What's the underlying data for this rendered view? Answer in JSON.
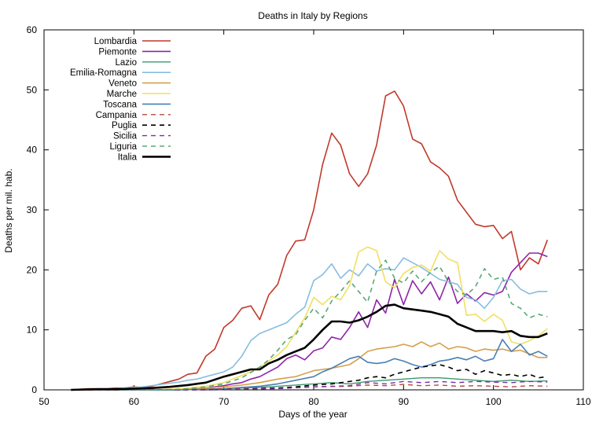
{
  "chart_data": {
    "type": "line",
    "title": "Deaths in Italy by Regions",
    "xlabel": "Days of the year",
    "ylabel": "Deaths per mil. hab.",
    "xlim": [
      50,
      110
    ],
    "ylim": [
      0,
      60
    ],
    "xticks": [
      50,
      60,
      70,
      80,
      90,
      100,
      110
    ],
    "yticks": [
      0,
      10,
      20,
      30,
      40,
      50,
      60
    ],
    "grid": false,
    "legend_position": "top-left",
    "series": [
      {
        "name": "Lombardia",
        "color": "#c0392b",
        "dash": "solid",
        "width": 1.6,
        "x": [
          53,
          54,
          55,
          56,
          57,
          58,
          59,
          60,
          61,
          62,
          63,
          64,
          65,
          66,
          67,
          68,
          69,
          70,
          71,
          72,
          73,
          74,
          75,
          76,
          77,
          78,
          79,
          80,
          81,
          82,
          83,
          84,
          85,
          86,
          87,
          88,
          89,
          90,
          91,
          92,
          93,
          94,
          95,
          96,
          97,
          98,
          99,
          100,
          101,
          102,
          103,
          104,
          105,
          106
        ],
        "y": [
          0,
          0.1,
          0.2,
          0.2,
          0.2,
          0.3,
          0.3,
          0.5,
          0.4,
          0.6,
          1.0,
          1.4,
          1.8,
          2.6,
          2.8,
          5.6,
          6.8,
          10.4,
          11.6,
          13.6,
          14.0,
          11.7,
          15.8,
          17.6,
          22.4,
          24.8,
          25.0,
          30.0,
          37.6,
          42.8,
          40.8,
          36.0,
          33.9,
          36.0,
          40.8,
          49.0,
          49.8,
          47.3,
          41.8,
          41.0,
          38.0,
          37.0,
          35.6,
          31.6,
          29.6,
          27.6,
          27.2,
          27.4,
          25.2,
          26.4,
          20.0,
          22.0,
          21.0,
          25.0
        ]
      },
      {
        "name": "Piemonte",
        "color": "#8e24aa",
        "dash": "solid",
        "width": 1.6,
        "x": [
          53,
          54,
          55,
          56,
          57,
          58,
          59,
          60,
          61,
          62,
          63,
          64,
          65,
          66,
          67,
          68,
          69,
          70,
          71,
          72,
          73,
          74,
          75,
          76,
          77,
          78,
          79,
          80,
          81,
          82,
          83,
          84,
          85,
          86,
          87,
          88,
          89,
          90,
          91,
          92,
          93,
          94,
          95,
          96,
          97,
          98,
          99,
          100,
          101,
          102,
          103,
          104,
          105,
          106
        ],
        "y": [
          0,
          0,
          0,
          0,
          0,
          0,
          0,
          0,
          0,
          0,
          0,
          0,
          0,
          0.1,
          0.2,
          0.3,
          0.5,
          0.7,
          1.0,
          1.2,
          1.8,
          2.2,
          3.0,
          3.8,
          5.2,
          5.8,
          5.0,
          6.5,
          7.0,
          8.8,
          8.4,
          10.4,
          13.0,
          10.4,
          15.0,
          12.8,
          18.4,
          14.2,
          18.2,
          16.0,
          18.0,
          15.0,
          18.8,
          14.4,
          16.0,
          14.8,
          16.2,
          15.8,
          16.4,
          19.6,
          21.2,
          22.8,
          22.8,
          22.2
        ]
      },
      {
        "name": "Lazio",
        "color": "#3a9a6e",
        "dash": "solid",
        "width": 1.4,
        "x": [
          53,
          56,
          59,
          62,
          65,
          68,
          70,
          72,
          74,
          76,
          78,
          80,
          82,
          84,
          86,
          88,
          90,
          92,
          94,
          96,
          98,
          100,
          102,
          104,
          106
        ],
        "y": [
          0,
          0,
          0,
          0,
          0,
          0.1,
          0.2,
          0.3,
          0.4,
          0.6,
          0.8,
          1.0,
          1.2,
          1.0,
          1.4,
          1.6,
          1.8,
          2.0,
          2.0,
          1.8,
          1.6,
          1.4,
          1.6,
          1.4,
          1.5
        ]
      },
      {
        "name": "Emilia-Romagna",
        "color": "#87bde0",
        "dash": "solid",
        "width": 1.6,
        "x": [
          53,
          54,
          55,
          56,
          57,
          58,
          59,
          60,
          61,
          62,
          63,
          64,
          65,
          66,
          67,
          68,
          69,
          70,
          71,
          72,
          73,
          74,
          75,
          76,
          77,
          78,
          79,
          80,
          81,
          82,
          83,
          84,
          85,
          86,
          87,
          88,
          89,
          90,
          91,
          92,
          93,
          94,
          95,
          96,
          97,
          98,
          99,
          100,
          101,
          102,
          103,
          104,
          105,
          106
        ],
        "y": [
          0,
          0,
          0,
          0,
          0.1,
          0.2,
          0.3,
          0.4,
          0.5,
          0.7,
          0.9,
          1.1,
          1.3,
          1.6,
          1.8,
          2.2,
          2.6,
          3.0,
          3.8,
          5.6,
          8.2,
          9.4,
          10.0,
          10.6,
          11.2,
          12.6,
          13.8,
          18.2,
          19.2,
          21.0,
          18.6,
          20.0,
          19.0,
          21.0,
          19.8,
          20.2,
          20.0,
          22.0,
          21.2,
          20.4,
          19.4,
          18.4,
          18.0,
          17.6,
          15.4,
          15.0,
          13.6,
          15.4,
          18.2,
          18.4,
          16.8,
          16.0,
          16.4,
          16.4
        ]
      },
      {
        "name": "Veneto",
        "color": "#d4a04a",
        "dash": "solid",
        "width": 1.6,
        "x": [
          53,
          56,
          59,
          62,
          64,
          66,
          68,
          70,
          72,
          74,
          76,
          78,
          80,
          82,
          84,
          85,
          86,
          87,
          88,
          89,
          90,
          91,
          92,
          93,
          94,
          95,
          96,
          97,
          98,
          99,
          100,
          101,
          102,
          103,
          104,
          105,
          106
        ],
        "y": [
          0,
          0,
          0,
          0,
          0.1,
          0.2,
          0.3,
          0.5,
          0.8,
          1.2,
          1.8,
          2.2,
          3.2,
          3.6,
          4.2,
          5.2,
          6.4,
          6.8,
          7.0,
          7.2,
          7.6,
          7.2,
          8.0,
          7.2,
          7.8,
          6.8,
          7.2,
          7.0,
          6.4,
          6.8,
          6.6,
          6.8,
          6.4,
          6.6,
          6.0,
          5.4,
          5.4
        ]
      },
      {
        "name": "Marche",
        "color": "#f0e060",
        "dash": "solid",
        "width": 1.6,
        "x": [
          53,
          56,
          59,
          62,
          64,
          66,
          68,
          70,
          71,
          72,
          73,
          74,
          75,
          76,
          77,
          78,
          79,
          80,
          81,
          82,
          83,
          84,
          85,
          86,
          87,
          88,
          89,
          90,
          91,
          92,
          93,
          94,
          95,
          96,
          97,
          98,
          99,
          100,
          101,
          102,
          103,
          104,
          105,
          106
        ],
        "y": [
          0,
          0,
          0,
          0,
          0.1,
          0.3,
          0.6,
          1.2,
          1.8,
          2.4,
          3.0,
          3.8,
          4.8,
          5.8,
          7.2,
          9.6,
          12.0,
          15.4,
          14.2,
          15.6,
          15.0,
          17.4,
          23.0,
          23.8,
          23.2,
          18.0,
          17.0,
          19.4,
          20.4,
          20.8,
          19.8,
          23.2,
          21.8,
          21.2,
          12.4,
          12.6,
          11.4,
          12.6,
          11.6,
          8.0,
          7.6,
          8.2,
          9.0,
          10.2
        ]
      },
      {
        "name": "Toscana",
        "color": "#4a7fb5",
        "dash": "solid",
        "width": 1.6,
        "x": [
          53,
          56,
          59,
          62,
          65,
          68,
          70,
          72,
          74,
          76,
          78,
          80,
          81,
          82,
          83,
          84,
          85,
          86,
          87,
          88,
          89,
          90,
          91,
          92,
          93,
          94,
          95,
          96,
          97,
          98,
          99,
          100,
          101,
          102,
          103,
          104,
          105,
          106
        ],
        "y": [
          0,
          0,
          0,
          0,
          0,
          0.1,
          0.2,
          0.4,
          0.6,
          1.0,
          1.6,
          2.2,
          3.0,
          3.6,
          4.4,
          5.2,
          5.6,
          4.6,
          4.4,
          4.6,
          5.2,
          4.8,
          4.2,
          3.8,
          4.2,
          4.8,
          5.0,
          5.4,
          5.0,
          5.6,
          4.8,
          5.2,
          8.4,
          6.4,
          7.6,
          5.8,
          6.4,
          5.6
        ]
      },
      {
        "name": "Campania",
        "color": "#b5493a",
        "dash": "dashed",
        "width": 1.4,
        "x": [
          53,
          56,
          60,
          64,
          68,
          72,
          76,
          80,
          84,
          86,
          88,
          90,
          92,
          94,
          96,
          98,
          100,
          102,
          104,
          106
        ],
        "y": [
          0,
          0,
          0,
          0,
          0.1,
          0.2,
          0.3,
          0.5,
          0.6,
          0.8,
          0.7,
          0.9,
          0.7,
          0.8,
          0.6,
          0.7,
          0.6,
          0.5,
          0.7,
          0.6
        ]
      },
      {
        "name": "Puglia",
        "color": "#000000",
        "dash": "dashed",
        "width": 1.6,
        "x": [
          53,
          56,
          60,
          64,
          68,
          72,
          76,
          78,
          80,
          82,
          84,
          85,
          86,
          87,
          88,
          89,
          90,
          91,
          92,
          93,
          94,
          95,
          96,
          97,
          98,
          99,
          100,
          101,
          102,
          103,
          104,
          105,
          106
        ],
        "y": [
          0,
          0,
          0,
          0,
          0,
          0.1,
          0.3,
          0.5,
          0.8,
          1.0,
          1.4,
          1.6,
          2.0,
          2.2,
          2.0,
          2.6,
          3.0,
          3.4,
          3.8,
          4.0,
          4.2,
          3.8,
          3.2,
          3.4,
          2.6,
          3.2,
          2.8,
          2.4,
          2.6,
          2.2,
          2.6,
          2.0,
          2.2
        ]
      },
      {
        "name": "Sicilia",
        "color": "#7b2fa6",
        "dash": "dashed",
        "width": 1.4,
        "x": [
          53,
          56,
          60,
          64,
          68,
          72,
          76,
          80,
          84,
          86,
          88,
          90,
          92,
          94,
          96,
          98,
          100,
          102,
          104,
          106
        ],
        "y": [
          0,
          0,
          0,
          0,
          0,
          0.1,
          0.2,
          0.5,
          0.7,
          1.2,
          1.0,
          1.4,
          1.2,
          1.4,
          1.2,
          1.4,
          1.3,
          1.2,
          1.4,
          1.3
        ]
      },
      {
        "name": "Liguria",
        "color": "#5aa77a",
        "dash": "dashed",
        "width": 1.6,
        "x": [
          53,
          56,
          60,
          64,
          66,
          68,
          70,
          72,
          74,
          75,
          76,
          77,
          78,
          79,
          80,
          81,
          82,
          83,
          84,
          85,
          86,
          87,
          88,
          89,
          90,
          91,
          92,
          93,
          94,
          95,
          96,
          97,
          98,
          99,
          100,
          101,
          102,
          103,
          104,
          105,
          106
        ],
        "y": [
          0,
          0,
          0,
          0,
          0.2,
          0.5,
          1.0,
          2.0,
          3.8,
          5.0,
          6.6,
          8.4,
          9.2,
          11.6,
          13.6,
          12.0,
          14.8,
          16.4,
          18.2,
          16.4,
          14.6,
          19.8,
          21.6,
          18.6,
          17.8,
          19.8,
          18.0,
          19.6,
          20.6,
          18.0,
          16.4,
          15.8,
          17.2,
          20.2,
          18.4,
          18.8,
          14.4,
          13.6,
          12.0,
          12.6,
          12.2
        ]
      },
      {
        "name": "Italia",
        "color": "#000000",
        "dash": "solid",
        "width": 2.6,
        "x": [
          53,
          56,
          58,
          60,
          62,
          64,
          66,
          68,
          70,
          72,
          73,
          74,
          75,
          76,
          77,
          78,
          79,
          80,
          81,
          82,
          83,
          84,
          85,
          86,
          87,
          88,
          89,
          90,
          91,
          92,
          93,
          94,
          95,
          96,
          97,
          98,
          99,
          100,
          101,
          102,
          103,
          104,
          105,
          106
        ],
        "y": [
          0,
          0.1,
          0.1,
          0.2,
          0.3,
          0.5,
          0.8,
          1.2,
          2.2,
          3.0,
          3.4,
          3.4,
          4.4,
          5.0,
          5.8,
          6.4,
          7.0,
          8.4,
          10.0,
          11.4,
          11.4,
          11.2,
          11.6,
          12.2,
          13.0,
          14.0,
          14.2,
          13.6,
          13.4,
          13.2,
          13.0,
          12.6,
          12.2,
          11.0,
          10.4,
          9.8,
          9.8,
          9.8,
          9.6,
          9.8,
          9.0,
          8.8,
          8.8,
          9.4
        ]
      }
    ]
  }
}
